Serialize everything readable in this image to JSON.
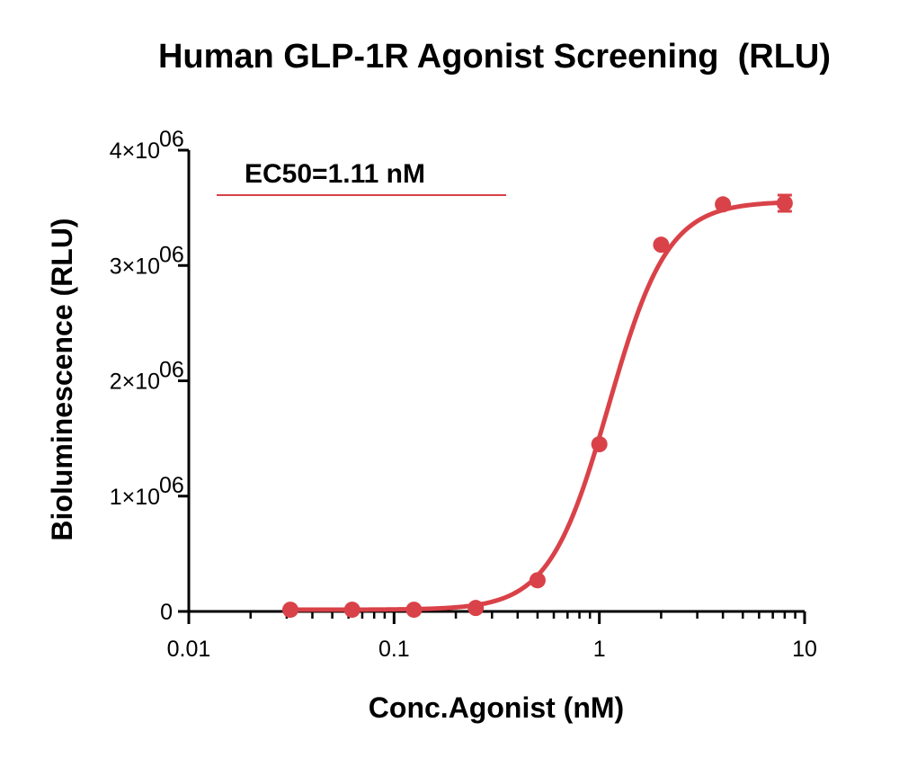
{
  "chart_data": {
    "type": "scatter",
    "title": "Human GLP-1R Agonist Screening  (RLU)",
    "xlabel": "Conc.Agonist (nM)",
    "ylabel": "Bioluminescence (RLU)",
    "x_scale": "log",
    "xlim": [
      0.01,
      10
    ],
    "ylim": [
      0,
      4000000
    ],
    "x_ticks": [
      {
        "value": 0.01,
        "label": "0.01"
      },
      {
        "value": 0.1,
        "label": "0.1"
      },
      {
        "value": 1,
        "label": "1"
      },
      {
        "value": 10,
        "label": "10"
      }
    ],
    "y_ticks": [
      {
        "value": 0,
        "label": "0"
      },
      {
        "value": 1000000,
        "label": "1×10",
        "exp": "06"
      },
      {
        "value": 2000000,
        "label": "2×10",
        "exp": "06"
      },
      {
        "value": 3000000,
        "label": "3×10",
        "exp": "06"
      },
      {
        "value": 4000000,
        "label": "4×10",
        "exp": "06"
      }
    ],
    "annotation": "EC50=1.11 nM",
    "color": "#d94248",
    "grid": false,
    "series": [
      {
        "x": [
          0.03125,
          0.0625,
          0.125,
          0.25,
          0.5,
          1,
          2,
          4,
          8
        ],
        "y": [
          15000,
          15000,
          15000,
          30000,
          270000,
          1450000,
          3180000,
          3530000,
          3540000
        ],
        "error": [
          0,
          0,
          0,
          0,
          0,
          0,
          0,
          0,
          70000
        ]
      }
    ],
    "fit": {
      "bottom": 15000,
      "top": 3555000,
      "ec50": 1.11,
      "hill": 3.0
    }
  }
}
